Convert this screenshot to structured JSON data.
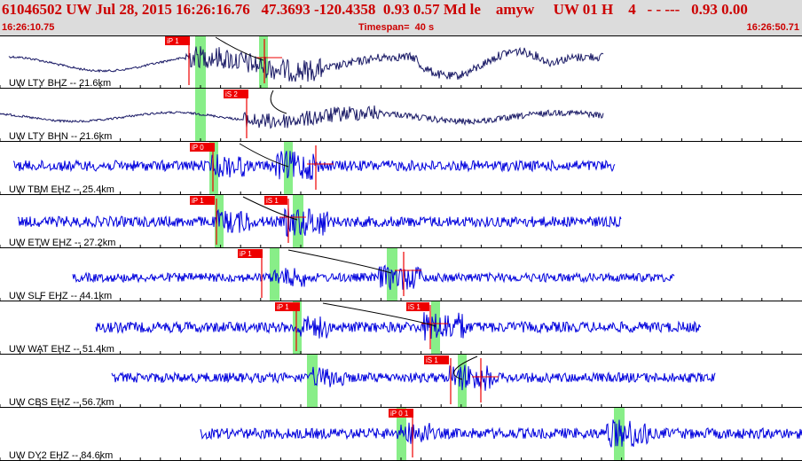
{
  "header": {
    "event_info": "61046502 UW Jul 28, 2015 16:26:16.76   47.3693 -120.4358  0.93 0.57 Md le    amyw     UW 01 H    4   - - ---   0.93 0.00",
    "start_time": "16:26:10.75",
    "timespan": "Timespan=  40 s",
    "end_time": "16:26:50.71"
  },
  "colors": {
    "header_bg": "#dcdcdc",
    "header_text": "#cc0000",
    "trace_broadband": "#1a1a66",
    "trace_short_period": "#0000dd",
    "pick_flag": "#ee0000",
    "pick_window": "#88ee88",
    "travel_curve": "#000000"
  },
  "traces": [
    {
      "label": "UW LTY BHZ -- 21.6km",
      "pick_label": "iP 1",
      "type": "broadband",
      "start": 10,
      "end": 68
    },
    {
      "label": "UW LTY BHN -- 21.6km",
      "pick_label": "iS 2",
      "type": "broadband",
      "start": 0,
      "end": 68
    },
    {
      "label": "UW TBM EHZ -- 25.4km",
      "pick_label": "iP 0",
      "type": "short",
      "start": 1.5,
      "end": 69
    },
    {
      "label": "UW ETW EHZ -- 27.2km",
      "pick_label": "iP 1",
      "pick2_label": "iS 1",
      "type": "short",
      "start": 2,
      "end": 70
    },
    {
      "label": "UW SLF EHZ -- 44.1km",
      "pick_label": "iP 1",
      "type": "short",
      "start": 8,
      "end": 75
    },
    {
      "label": "UW WAT EHZ -- 51.4km",
      "pick_label": "iP 1",
      "pick2_label": "iS 1",
      "type": "short",
      "start": 11,
      "end": 79
    },
    {
      "label": "UW CBS EHZ -- 56.7km",
      "pick_label": "iS 1",
      "type": "short",
      "start": 14,
      "end": 80.5
    },
    {
      "label": "UW DY2 EHZ -- 84.6km",
      "pick_label": "iP 0 1",
      "type": "short",
      "start": 25,
      "end": 90.4
    }
  ]
}
